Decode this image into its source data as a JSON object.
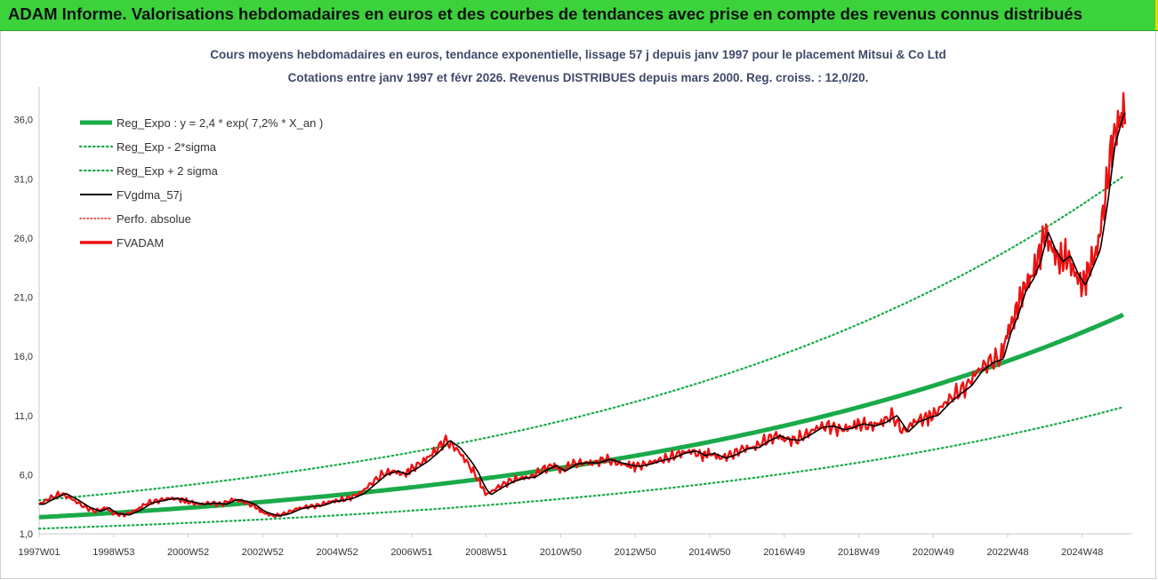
{
  "banner": {
    "title": "ADAM Informe. Valorisations hebdomadaires en euros et des courbes de tendances avec prise en compte des revenus connus distribués",
    "bg_color": "#3cd23c"
  },
  "chart_data": {
    "type": "line",
    "title_line1": "Cours moyens hebdomadaires en euros, tendance exponentielle, lissage 57 j depuis janv 1997 pour le placement Mitsui & Co Ltd",
    "title_line2": "Cotations entre janv 1997 et févr 2026. Revenus DISTRIBUES depuis mars 2000. Reg. croiss. : 12,0/20.",
    "xlabel": "",
    "ylabel": "",
    "x_range_years": [
      1997.0,
      2026.15
    ],
    "ylim": [
      1.0,
      38.0
    ],
    "y_ticks": [
      1.0,
      6.0,
      11.0,
      16.0,
      21.0,
      26.0,
      31.0,
      36.0
    ],
    "y_tick_labels": [
      "1,0",
      "6,0",
      "11,0",
      "16,0",
      "21,0",
      "26,0",
      "31,0",
      "36,0"
    ],
    "x_tick_labels": [
      {
        "label": "1997W01",
        "year": 1997.0
      },
      {
        "label": "1998W53",
        "year": 1999.0
      },
      {
        "label": "2000W52",
        "year": 2001.0
      },
      {
        "label": "2002W52",
        "year": 2003.0
      },
      {
        "label": "2004W52",
        "year": 2005.0
      },
      {
        "label": "2006W51",
        "year": 2007.0
      },
      {
        "label": "2008W51",
        "year": 2009.0
      },
      {
        "label": "2010W50",
        "year": 2011.0
      },
      {
        "label": "2012W50",
        "year": 2013.0
      },
      {
        "label": "2014W50",
        "year": 2015.0
      },
      {
        "label": "2016W49",
        "year": 2017.0
      },
      {
        "label": "2018W49",
        "year": 2019.0
      },
      {
        "label": "2020W49",
        "year": 2021.0
      },
      {
        "label": "2022W48",
        "year": 2023.0
      },
      {
        "label": "2024W48",
        "year": 2025.0
      }
    ],
    "grid": false,
    "legend_position": "top-left",
    "regression": {
      "a": 2.4,
      "rate_pct": 7.2,
      "sigma_low": 0.6,
      "sigma_high": 1.6
    },
    "series": [
      {
        "name": "Reg_Expo : y = 2,4 * exp( 7,2% *  X_an )",
        "color": "#1aaa4a",
        "style": "thick"
      },
      {
        "name": "Reg_Exp - 2*sigma",
        "color": "#1aaa4a",
        "style": "dotted"
      },
      {
        "name": "Reg_Exp + 2 sigma",
        "color": "#1aaa4a",
        "style": "dotted"
      },
      {
        "name": "FVgdma_57j",
        "color": "#000000",
        "style": "solid"
      },
      {
        "name": "Perfo. absolue",
        "color": "#ee2222",
        "style": "dotted"
      },
      {
        "name": "FVADAM",
        "color": "#ee1111",
        "style": "thick",
        "x": [
          1997.0,
          1997.3,
          1997.6,
          1997.9,
          1998.2,
          1998.5,
          1998.8,
          1999.0,
          1999.3,
          1999.6,
          1999.9,
          2000.2,
          2000.5,
          2000.8,
          2001.0,
          2001.3,
          2001.6,
          2001.9,
          2002.2,
          2002.5,
          2002.8,
          2003.0,
          2003.3,
          2003.6,
          2003.9,
          2004.2,
          2004.5,
          2004.8,
          2005.0,
          2005.3,
          2005.6,
          2005.9,
          2006.2,
          2006.5,
          2006.8,
          2007.0,
          2007.3,
          2007.6,
          2007.9,
          2008.2,
          2008.5,
          2008.8,
          2009.0,
          2009.3,
          2009.6,
          2009.9,
          2010.2,
          2010.5,
          2010.8,
          2011.0,
          2011.3,
          2011.6,
          2011.9,
          2012.2,
          2012.5,
          2012.8,
          2013.0,
          2013.3,
          2013.6,
          2013.9,
          2014.2,
          2014.5,
          2014.8,
          2015.0,
          2015.3,
          2015.6,
          2015.9,
          2016.2,
          2016.5,
          2016.8,
          2017.0,
          2017.3,
          2017.6,
          2017.9,
          2018.2,
          2018.5,
          2018.8,
          2019.0,
          2019.3,
          2019.6,
          2019.9,
          2020.2,
          2020.5,
          2020.8,
          2021.0,
          2021.3,
          2021.6,
          2021.9,
          2022.2,
          2022.5,
          2022.8,
          2023.0,
          2023.2,
          2023.4,
          2023.6,
          2023.8,
          2024.0,
          2024.2,
          2024.4,
          2024.6,
          2024.8,
          2025.0,
          2025.2,
          2025.4,
          2025.6,
          2025.8,
          2026.0,
          2026.15
        ],
        "values": [
          3.5,
          4.0,
          4.4,
          3.9,
          3.3,
          2.9,
          3.2,
          2.7,
          2.6,
          3.0,
          3.6,
          3.8,
          4.0,
          3.9,
          3.7,
          3.5,
          3.6,
          3.5,
          3.9,
          3.7,
          3.3,
          2.8,
          2.5,
          2.7,
          3.1,
          3.3,
          3.4,
          3.7,
          3.8,
          4.0,
          4.4,
          5.2,
          6.0,
          6.3,
          6.0,
          6.5,
          7.1,
          7.9,
          8.9,
          8.2,
          7.0,
          5.5,
          4.3,
          4.9,
          5.4,
          5.7,
          5.8,
          6.4,
          6.8,
          6.3,
          6.9,
          7.0,
          7.0,
          7.3,
          7.0,
          6.8,
          6.7,
          6.9,
          7.2,
          7.4,
          7.8,
          8.0,
          7.6,
          7.8,
          7.4,
          7.7,
          8.2,
          8.3,
          8.9,
          9.3,
          9.0,
          8.9,
          9.4,
          10.0,
          10.1,
          9.8,
          10.0,
          10.3,
          10.1,
          10.4,
          11.0,
          9.6,
          10.5,
          10.8,
          11.0,
          12.0,
          12.8,
          13.5,
          14.8,
          15.5,
          15.8,
          18.0,
          19.5,
          21.5,
          22.5,
          24.0,
          26.5,
          25.0,
          24.0,
          24.5,
          23.0,
          22.0,
          23.5,
          25.0,
          29.0,
          34.0,
          36.0,
          37.0
        ]
      }
    ]
  }
}
